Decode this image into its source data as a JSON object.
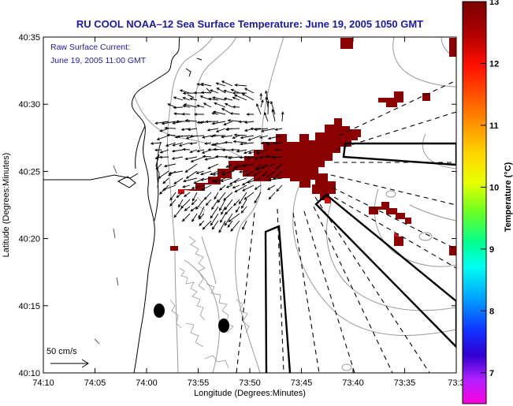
{
  "title": "RU COOL  NOAA–12  Sea Surface Temperature:  June 19, 2005 1050 GMT",
  "annotation": {
    "line1": "Raw Surface Current:",
    "line2": "June 19, 2005 11:00 GMT"
  },
  "axes": {
    "xlabel": "Longitude (Degrees:Minutes)",
    "ylabel": "Latitude (Degrees:Minutes)",
    "xticks": [
      "74:10",
      "74:05",
      "74:00",
      "73:55",
      "73:50",
      "73:45",
      "73:40",
      "73:35",
      "73:3"
    ],
    "yticks": [
      "40:35",
      "40:30",
      "40:25",
      "40:20",
      "40:15",
      "40:10"
    ]
  },
  "colorbar": {
    "label": "Temperature (°C)",
    "ticks": [
      "13",
      "12",
      "11",
      "10",
      "9",
      "8",
      "7"
    ],
    "range": [
      6.5,
      13
    ]
  },
  "scale": {
    "label": "50 cm/s"
  },
  "colors": {
    "title": "#1a1aa8",
    "sst_warm": "#8b0000",
    "sst_edge": "#cc1010",
    "land_contour": "#000000",
    "bathymetry": "#9a9a9a"
  }
}
